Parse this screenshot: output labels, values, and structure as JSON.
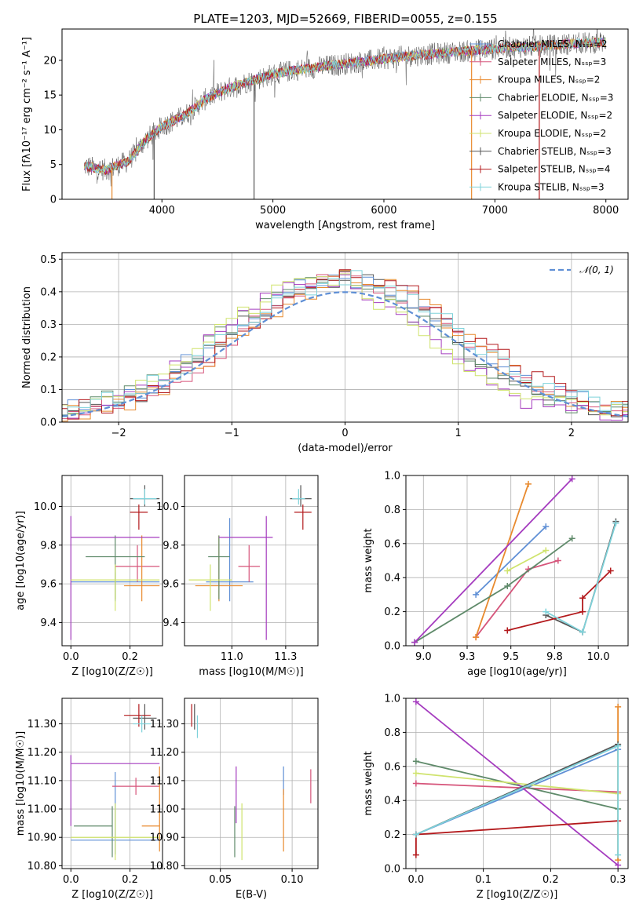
{
  "colors": [
    "#5f8fd5",
    "#d6547a",
    "#e88a2e",
    "#5f8a6a",
    "#a53cbf",
    "#cfe36d",
    "#555555",
    "#b3191c",
    "#7ed2da"
  ],
  "chart_data": [
    {
      "id": "spectrum",
      "type": "line",
      "title": "PLATE=1203, MJD=52669, FIBERID=0055, z=0.155",
      "xlabel": "wavelength [Angstrom, rest frame]",
      "ylabel": "Flux [fλ10⁻¹⁷ erg cm⁻² s⁻¹ A⁻¹]",
      "xlim": [
        3100,
        8200
      ],
      "ylim": [
        0,
        24.5
      ],
      "xticks": [
        4000,
        5000,
        6000,
        7000,
        8000
      ],
      "yticks": [
        0,
        5,
        10,
        15,
        20
      ],
      "grid": false,
      "legend_position": "top-right",
      "legend": [
        "Chabrier MILES, N_SSP=2",
        "Salpeter MILES, N_SSP=3",
        "Kroupa MILES, N_SSP=2",
        "Chabrier ELODIE, N_SSP=3",
        "Salpeter ELODIE, N_SSP=2",
        "Kroupa ELODIE, N_SSP=2",
        "Chabrier STELIB, N_SSP=3",
        "Salpeter STELIB, N_SSP=4",
        "Kroupa STELIB, N_SSP=3"
      ],
      "continuum": [
        [
          3300,
          4.8
        ],
        [
          3500,
          4.2
        ],
        [
          3700,
          5.5
        ],
        [
          3850,
          8.5
        ],
        [
          4000,
          10.5
        ],
        [
          4200,
          12
        ],
        [
          4400,
          14.5
        ],
        [
          4600,
          16
        ],
        [
          4800,
          17
        ],
        [
          5000,
          18
        ],
        [
          5200,
          18.6
        ],
        [
          5500,
          19.2
        ],
        [
          5800,
          19.8
        ],
        [
          6000,
          20.2
        ],
        [
          6200,
          20.6
        ],
        [
          6500,
          21
        ],
        [
          6800,
          21.4
        ],
        [
          7100,
          21.8
        ],
        [
          7400,
          22
        ],
        [
          7700,
          22.4
        ],
        [
          8000,
          22.6
        ]
      ]
    },
    {
      "id": "residuals",
      "type": "histogram",
      "xlabel": "(data-model)/error",
      "ylabel": "Normed distribution",
      "xlim": [
        -2.5,
        2.5
      ],
      "ylim": [
        0,
        0.52
      ],
      "xticks": [
        -2,
        -1,
        0,
        1,
        2
      ],
      "yticks": [
        0.0,
        0.1,
        0.2,
        0.3,
        0.4,
        0.5
      ],
      "grid": true,
      "legend_position": "top-right",
      "legend": [
        "N(0,1)"
      ],
      "bin_width": 0.1,
      "reference_curve": "gaussian mean 0, sigma 1"
    },
    {
      "id": "age-vs-Z",
      "type": "errorbar",
      "xlabel": "Z [log10(Z/Z☉)]",
      "ylabel": "age  [log10(age/yr)]",
      "xlim": [
        -0.03,
        0.31
      ],
      "ylim": [
        9.28,
        10.16
      ],
      "xticks": [
        0.0,
        0.2
      ],
      "yticks": [
        9.4,
        9.6,
        9.8,
        10.0
      ],
      "grid": true,
      "points": [
        {
          "x": 0.15,
          "xerr": [
            0.15,
            0.15
          ],
          "y": 9.61,
          "yerr": [
            0.1,
            0.05
          ]
        },
        {
          "x": 0.225,
          "xerr": [
            0.075,
            0.075
          ],
          "y": 9.69,
          "yerr": [
            0.08,
            0.11
          ]
        },
        {
          "x": 0.24,
          "xerr": [
            0.06,
            0.06
          ],
          "y": 9.59,
          "yerr": [
            0.08,
            0.26
          ]
        },
        {
          "x": 0.15,
          "xerr": [
            0.1,
            0.1
          ],
          "y": 9.74,
          "yerr": [
            0.22,
            0.11
          ]
        },
        {
          "x": 0.0,
          "xerr": [
            0.0,
            0.3
          ],
          "y": 9.84,
          "yerr": [
            0.53,
            0.11
          ]
        },
        {
          "x": 0.15,
          "xerr": [
            0.15,
            0.15
          ],
          "y": 9.62,
          "yerr": [
            0.16,
            0.08
          ]
        },
        {
          "x": 0.25,
          "xerr": [
            0.05,
            0.05
          ],
          "y": 10.04,
          "yerr": [
            0.04,
            0.07
          ]
        },
        {
          "x": 0.23,
          "xerr": [
            0.03,
            0.03
          ],
          "y": 9.97,
          "yerr": [
            0.09,
            0.04
          ]
        },
        {
          "x": 0.25,
          "xerr": [
            0.04,
            0.04
          ],
          "y": 10.04,
          "yerr": [
            0.03,
            0.05
          ]
        }
      ]
    },
    {
      "id": "age-vs-mass",
      "type": "errorbar",
      "xlabel": "mass [log10(M/M☉)]",
      "ylabel": "",
      "xlim": [
        10.78,
        11.4
      ],
      "ylim": [
        9.28,
        10.16
      ],
      "xticks": [
        11.0,
        11.25
      ],
      "yticks": [
        9.4,
        9.6,
        9.8,
        10.0
      ],
      "grid": true,
      "points": [
        {
          "x": 10.99,
          "xerr": [
            0.11,
            0.11
          ],
          "y": 9.61,
          "yerr": [
            0.1,
            0.33
          ]
        },
        {
          "x": 11.08,
          "xerr": [
            0.05,
            0.05
          ],
          "y": 9.69,
          "yerr": [
            0.08,
            0.11
          ]
        },
        {
          "x": 10.94,
          "xerr": [
            0.11,
            0.11
          ],
          "y": 9.59,
          "yerr": [
            0.08,
            0.26
          ]
        },
        {
          "x": 10.94,
          "xerr": [
            0.05,
            0.05
          ],
          "y": 9.74,
          "yerr": [
            0.22,
            0.11
          ]
        },
        {
          "x": 11.16,
          "xerr": [
            0.22,
            0.03
          ],
          "y": 9.84,
          "yerr": [
            0.53,
            0.11
          ]
        },
        {
          "x": 10.9,
          "xerr": [
            0.1,
            0.1
          ],
          "y": 9.62,
          "yerr": [
            0.16,
            0.08
          ]
        },
        {
          "x": 11.32,
          "xerr": [
            0.05,
            0.05
          ],
          "y": 10.04,
          "yerr": [
            0.04,
            0.07
          ]
        },
        {
          "x": 11.33,
          "xerr": [
            0.04,
            0.04
          ],
          "y": 9.97,
          "yerr": [
            0.09,
            0.04
          ]
        },
        {
          "x": 11.31,
          "xerr": [
            0.03,
            0.03
          ],
          "y": 10.04,
          "yerr": [
            0.03,
            0.05
          ]
        }
      ]
    },
    {
      "id": "weight-vs-age",
      "type": "line",
      "xlabel": "age  [log10(age/yr)]",
      "ylabel": "mass weight",
      "xlim": [
        8.9,
        10.17
      ],
      "ylim": [
        0,
        1.0
      ],
      "xticks": [
        9.0,
        9.25,
        9.5,
        9.75,
        10.0
      ],
      "yticks": [
        0.0,
        0.2,
        0.4,
        0.6,
        0.8,
        1.0
      ],
      "grid": true,
      "series": [
        {
          "points": [
            [
              9.3,
              0.3
            ],
            [
              9.7,
              0.7
            ]
          ]
        },
        {
          "points": [
            [
              9.3,
              0.05
            ],
            [
              9.6,
              0.45
            ],
            [
              9.77,
              0.5
            ]
          ]
        },
        {
          "points": [
            [
              9.3,
              0.05
            ],
            [
              9.6,
              0.95
            ]
          ]
        },
        {
          "points": [
            [
              8.95,
              0.02
            ],
            [
              9.48,
              0.35
            ],
            [
              9.85,
              0.63
            ]
          ]
        },
        {
          "points": [
            [
              8.95,
              0.02
            ],
            [
              9.85,
              0.98
            ]
          ]
        },
        {
          "points": [
            [
              9.48,
              0.44
            ],
            [
              9.7,
              0.56
            ]
          ]
        },
        {
          "points": [
            [
              9.7,
              0.18
            ],
            [
              9.91,
              0.08
            ],
            [
              10.1,
              0.73
            ]
          ]
        },
        {
          "points": [
            [
              9.48,
              0.09
            ],
            [
              9.91,
              0.2
            ],
            [
              9.91,
              0.28
            ],
            [
              10.07,
              0.44
            ]
          ]
        },
        {
          "points": [
            [
              9.7,
              0.2
            ],
            [
              9.91,
              0.08
            ],
            [
              10.1,
              0.72
            ]
          ]
        }
      ]
    },
    {
      "id": "mass-vs-Z",
      "type": "errorbar",
      "xlabel": "Z [log10(Z/Z☉)]",
      "ylabel": "mass [log10(M/M☉)]",
      "xlim": [
        -0.03,
        0.31
      ],
      "ylim": [
        10.79,
        11.39
      ],
      "xticks": [
        0.0,
        0.2
      ],
      "yticks": [
        10.8,
        10.9,
        11.0,
        11.1,
        11.2,
        11.3
      ],
      "grid": true,
      "points": [
        {
          "x": 0.15,
          "xerr": [
            0.15,
            0.15
          ],
          "y": 10.89,
          "yerr": [
            0.05,
            0.24
          ]
        },
        {
          "x": 0.22,
          "xerr": [
            0.08,
            0.08
          ],
          "y": 11.08,
          "yerr": [
            0.03,
            0.03
          ]
        },
        {
          "x": 0.3,
          "xerr": [
            0.06,
            0.0
          ],
          "y": 10.94,
          "yerr": [
            0.09,
            0.21
          ]
        },
        {
          "x": 0.14,
          "xerr": [
            0.13,
            0.0
          ],
          "y": 10.94,
          "yerr": [
            0.11,
            0.07
          ]
        },
        {
          "x": 0.0,
          "xerr": [
            0.0,
            0.3
          ],
          "y": 11.16,
          "yerr": [
            0.22,
            0.03
          ]
        },
        {
          "x": 0.15,
          "xerr": [
            0.15,
            0.15
          ],
          "y": 10.9,
          "yerr": [
            0.08,
            0.12
          ]
        },
        {
          "x": 0.25,
          "xerr": [
            0.04,
            0.04
          ],
          "y": 11.32,
          "yerr": [
            0.04,
            0.05
          ]
        },
        {
          "x": 0.23,
          "xerr": [
            0.05,
            0.04
          ],
          "y": 11.33,
          "yerr": [
            0.04,
            0.04
          ]
        },
        {
          "x": 0.24,
          "xerr": [
            0.03,
            0.03
          ],
          "y": 11.3,
          "yerr": [
            0.03,
            0.03
          ]
        }
      ]
    },
    {
      "id": "mass-vs-EBV",
      "type": "errorbar",
      "xlabel": "E(B-V)",
      "ylabel": "",
      "xlim": [
        0.025,
        0.118
      ],
      "ylim": [
        10.79,
        11.39
      ],
      "xticks": [
        0.05,
        0.1
      ],
      "yticks": [
        10.8,
        10.9,
        11.0,
        11.1,
        11.2,
        11.3
      ],
      "grid": true,
      "points": [
        {
          "x": 0.094,
          "y": 11.1,
          "yerr": [
            0.05,
            0.05
          ]
        },
        {
          "x": 0.113,
          "y": 11.08,
          "yerr": [
            0.06,
            0.06
          ]
        },
        {
          "x": 0.094,
          "y": 10.94,
          "yerr": [
            0.09,
            0.13
          ]
        },
        {
          "x": 0.06,
          "y": 10.94,
          "yerr": [
            0.11,
            0.07
          ]
        },
        {
          "x": 0.061,
          "y": 11.05,
          "yerr": [
            0.1,
            0.1
          ]
        },
        {
          "x": 0.065,
          "y": 10.9,
          "yerr": [
            0.08,
            0.12
          ]
        },
        {
          "x": 0.032,
          "y": 11.32,
          "yerr": [
            0.04,
            0.05
          ]
        },
        {
          "x": 0.03,
          "y": 11.33,
          "yerr": [
            0.04,
            0.04
          ]
        },
        {
          "x": 0.034,
          "y": 11.3,
          "yerr": [
            0.05,
            0.03
          ]
        }
      ]
    },
    {
      "id": "weight-vs-Z",
      "type": "line",
      "xlabel": "Z [log10(Z/Z☉)]",
      "ylabel": "mass weight",
      "xlim": [
        -0.015,
        0.315
      ],
      "ylim": [
        0,
        1.0
      ],
      "xticks": [
        0.0,
        0.1,
        0.2,
        0.3
      ],
      "yticks": [
        0.0,
        0.2,
        0.4,
        0.6,
        0.8,
        1.0
      ],
      "grid": true,
      "series": [
        {
          "points": [
            [
              0.0,
              0.2
            ],
            [
              0.3,
              0.7
            ]
          ]
        },
        {
          "points": [
            [
              0.0,
              0.5
            ],
            [
              0.3,
              0.45
            ]
          ]
        },
        {
          "points": [
            [
              0.3,
              0.05
            ],
            [
              0.3,
              0.95
            ]
          ]
        },
        {
          "points": [
            [
              0.0,
              0.63
            ],
            [
              0.3,
              0.35
            ]
          ]
        },
        {
          "points": [
            [
              0.0,
              0.98
            ],
            [
              0.3,
              0.02
            ]
          ]
        },
        {
          "points": [
            [
              0.0,
              0.56
            ],
            [
              0.3,
              0.44
            ]
          ]
        },
        {
          "points": [
            [
              0.0,
              0.2
            ],
            [
              0.3,
              0.73
            ]
          ]
        },
        {
          "points": [
            [
              0.0,
              0.08
            ],
            [
              0.0,
              0.2
            ],
            [
              0.3,
              0.28
            ]
          ]
        },
        {
          "points": [
            [
              0.0,
              0.2
            ],
            [
              0.3,
              0.72
            ],
            [
              0.3,
              0.08
            ]
          ]
        }
      ]
    }
  ]
}
